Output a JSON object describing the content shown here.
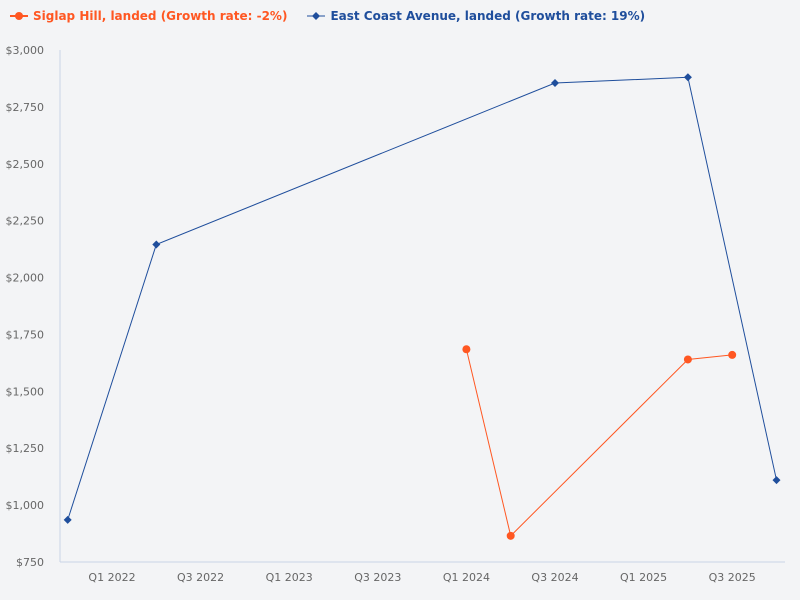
{
  "chart_data": {
    "type": "line",
    "title": "",
    "xlabel": "",
    "ylabel": "",
    "ylim": [
      750,
      3000
    ],
    "y_ticks": [
      "$750",
      "$1,000",
      "$1,250",
      "$1,500",
      "$1,750",
      "$2,000",
      "$2,250",
      "$2,500",
      "$2,750",
      "$3,000"
    ],
    "y_tick_values": [
      750,
      1000,
      1250,
      1500,
      1750,
      2000,
      2250,
      2500,
      2750,
      3000
    ],
    "x_ticks": [
      "Q1 2022",
      "Q3 2022",
      "Q1 2023",
      "Q3 2023",
      "Q1 2024",
      "Q3 2024",
      "Q1 2025",
      "Q3 2025"
    ],
    "grid": false,
    "legend_placement": "top-left",
    "series": [
      {
        "name": "Siglap Hill, landed (Growth rate: -2%)",
        "color": "#ff5722",
        "marker": "circle",
        "x": [
          "Q1 2024",
          "Q2 2024",
          "Q2 2025",
          "Q3 2025"
        ],
        "values": [
          1685,
          865,
          1640,
          1660
        ]
      },
      {
        "name": "East Coast Avenue, landed (Growth rate: 19%)",
        "color": "#1f4e9c",
        "marker": "diamond",
        "x": [
          "Q4 2021",
          "Q2 2022",
          "Q3 2024",
          "Q2 2025",
          "Q4 2025"
        ],
        "values": [
          935,
          2145,
          2855,
          2880,
          1110
        ]
      }
    ]
  }
}
